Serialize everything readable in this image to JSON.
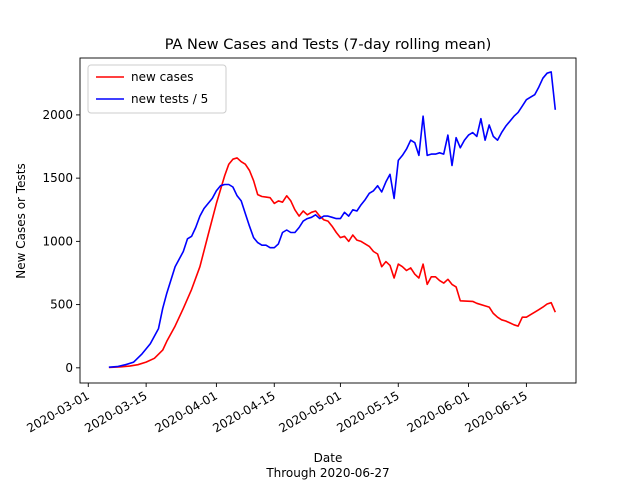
{
  "chart_data": {
    "type": "line",
    "title": "PA New Cases and Tests (7-day rolling mean)",
    "xlabel": "Date",
    "xlabel2": "Through 2020-06-27",
    "ylabel": "New Cases or Tests",
    "x_ticks": [
      "2020-03-01",
      "2020-03-15",
      "2020-04-01",
      "2020-04-15",
      "2020-05-01",
      "2020-05-15",
      "2020-06-01",
      "2020-06-15"
    ],
    "y_ticks": [
      0,
      500,
      1000,
      1500,
      2000
    ],
    "xlim": [
      "2020-02-28",
      "2020-06-27"
    ],
    "ylim": [
      -120,
      2450
    ],
    "legend_position": "top-left",
    "series": [
      {
        "name": "new cases",
        "color": "#ff0000",
        "points": [
          [
            "2020-03-06",
            3
          ],
          [
            "2020-03-09",
            8
          ],
          [
            "2020-03-11",
            14
          ],
          [
            "2020-03-13",
            25
          ],
          [
            "2020-03-15",
            45
          ],
          [
            "2020-03-17",
            75
          ],
          [
            "2020-03-19",
            140
          ],
          [
            "2020-03-20",
            210
          ],
          [
            "2020-03-22",
            330
          ],
          [
            "2020-03-24",
            470
          ],
          [
            "2020-03-26",
            620
          ],
          [
            "2020-03-28",
            800
          ],
          [
            "2020-03-30",
            1050
          ],
          [
            "2020-04-01",
            1300
          ],
          [
            "2020-04-03",
            1520
          ],
          [
            "2020-04-04",
            1610
          ],
          [
            "2020-04-05",
            1650
          ],
          [
            "2020-04-06",
            1660
          ],
          [
            "2020-04-07",
            1630
          ],
          [
            "2020-04-08",
            1610
          ],
          [
            "2020-04-09",
            1560
          ],
          [
            "2020-04-10",
            1480
          ],
          [
            "2020-04-11",
            1370
          ],
          [
            "2020-04-12",
            1355
          ],
          [
            "2020-04-13",
            1350
          ],
          [
            "2020-04-14",
            1345
          ],
          [
            "2020-04-15",
            1300
          ],
          [
            "2020-04-16",
            1320
          ],
          [
            "2020-04-17",
            1310
          ],
          [
            "2020-04-18",
            1360
          ],
          [
            "2020-04-19",
            1320
          ],
          [
            "2020-04-20",
            1250
          ],
          [
            "2020-04-21",
            1200
          ],
          [
            "2020-04-22",
            1240
          ],
          [
            "2020-04-23",
            1210
          ],
          [
            "2020-04-24",
            1230
          ],
          [
            "2020-04-25",
            1240
          ],
          [
            "2020-04-26",
            1200
          ],
          [
            "2020-04-27",
            1170
          ],
          [
            "2020-04-28",
            1160
          ],
          [
            "2020-04-29",
            1120
          ],
          [
            "2020-04-30",
            1070
          ],
          [
            "2020-05-01",
            1030
          ],
          [
            "2020-05-02",
            1040
          ],
          [
            "2020-05-03",
            1000
          ],
          [
            "2020-05-04",
            1050
          ],
          [
            "2020-05-05",
            1010
          ],
          [
            "2020-05-06",
            1000
          ],
          [
            "2020-05-07",
            980
          ],
          [
            "2020-05-08",
            960
          ],
          [
            "2020-05-09",
            920
          ],
          [
            "2020-05-10",
            900
          ],
          [
            "2020-05-11",
            800
          ],
          [
            "2020-05-12",
            840
          ],
          [
            "2020-05-13",
            810
          ],
          [
            "2020-05-14",
            710
          ],
          [
            "2020-05-15",
            820
          ],
          [
            "2020-05-16",
            800
          ],
          [
            "2020-05-17",
            770
          ],
          [
            "2020-05-18",
            790
          ],
          [
            "2020-05-19",
            740
          ],
          [
            "2020-05-20",
            710
          ],
          [
            "2020-05-21",
            820
          ],
          [
            "2020-05-22",
            660
          ],
          [
            "2020-05-23",
            720
          ],
          [
            "2020-05-24",
            720
          ],
          [
            "2020-05-25",
            690
          ],
          [
            "2020-05-26",
            670
          ],
          [
            "2020-05-27",
            700
          ],
          [
            "2020-05-28",
            660
          ],
          [
            "2020-05-29",
            640
          ],
          [
            "2020-05-30",
            530
          ],
          [
            "2020-06-02",
            525
          ],
          [
            "2020-06-03",
            510
          ],
          [
            "2020-06-05",
            490
          ],
          [
            "2020-06-06",
            480
          ],
          [
            "2020-06-07",
            430
          ],
          [
            "2020-06-08",
            400
          ],
          [
            "2020-06-09",
            380
          ],
          [
            "2020-06-10",
            370
          ],
          [
            "2020-06-11",
            355
          ],
          [
            "2020-06-12",
            340
          ],
          [
            "2020-06-13",
            330
          ],
          [
            "2020-06-14",
            400
          ],
          [
            "2020-06-15",
            400
          ],
          [
            "2020-06-16",
            420
          ],
          [
            "2020-06-17",
            440
          ],
          [
            "2020-06-18",
            460
          ],
          [
            "2020-06-19",
            480
          ],
          [
            "2020-06-20",
            505
          ],
          [
            "2020-06-21",
            515
          ],
          [
            "2020-06-22",
            440
          ]
        ]
      },
      {
        "name": "new tests / 5",
        "color": "#0000ff",
        "points": [
          [
            "2020-03-06",
            5
          ],
          [
            "2020-03-08",
            10
          ],
          [
            "2020-03-10",
            25
          ],
          [
            "2020-03-12",
            45
          ],
          [
            "2020-03-14",
            110
          ],
          [
            "2020-03-16",
            190
          ],
          [
            "2020-03-18",
            310
          ],
          [
            "2020-03-19",
            470
          ],
          [
            "2020-03-20",
            590
          ],
          [
            "2020-03-22",
            800
          ],
          [
            "2020-03-24",
            920
          ],
          [
            "2020-03-25",
            1020
          ],
          [
            "2020-03-26",
            1040
          ],
          [
            "2020-03-27",
            1110
          ],
          [
            "2020-03-28",
            1200
          ],
          [
            "2020-03-29",
            1260
          ],
          [
            "2020-03-31",
            1340
          ],
          [
            "2020-04-01",
            1400
          ],
          [
            "2020-04-02",
            1440
          ],
          [
            "2020-04-03",
            1450
          ],
          [
            "2020-04-04",
            1450
          ],
          [
            "2020-04-05",
            1430
          ],
          [
            "2020-04-06",
            1360
          ],
          [
            "2020-04-07",
            1320
          ],
          [
            "2020-04-08",
            1220
          ],
          [
            "2020-04-09",
            1120
          ],
          [
            "2020-04-10",
            1030
          ],
          [
            "2020-04-11",
            990
          ],
          [
            "2020-04-12",
            970
          ],
          [
            "2020-04-13",
            970
          ],
          [
            "2020-04-14",
            950
          ],
          [
            "2020-04-15",
            950
          ],
          [
            "2020-04-16",
            980
          ],
          [
            "2020-04-17",
            1070
          ],
          [
            "2020-04-18",
            1090
          ],
          [
            "2020-04-19",
            1070
          ],
          [
            "2020-04-20",
            1070
          ],
          [
            "2020-04-21",
            1110
          ],
          [
            "2020-04-22",
            1160
          ],
          [
            "2020-04-23",
            1180
          ],
          [
            "2020-04-24",
            1190
          ],
          [
            "2020-04-25",
            1210
          ],
          [
            "2020-04-26",
            1180
          ],
          [
            "2020-04-27",
            1200
          ],
          [
            "2020-04-28",
            1200
          ],
          [
            "2020-04-29",
            1190
          ],
          [
            "2020-04-30",
            1180
          ],
          [
            "2020-05-01",
            1180
          ],
          [
            "2020-05-02",
            1230
          ],
          [
            "2020-05-03",
            1200
          ],
          [
            "2020-05-04",
            1250
          ],
          [
            "2020-05-05",
            1240
          ],
          [
            "2020-05-06",
            1290
          ],
          [
            "2020-05-07",
            1330
          ],
          [
            "2020-05-08",
            1380
          ],
          [
            "2020-05-09",
            1400
          ],
          [
            "2020-05-10",
            1440
          ],
          [
            "2020-05-11",
            1390
          ],
          [
            "2020-05-12",
            1470
          ],
          [
            "2020-05-13",
            1530
          ],
          [
            "2020-05-14",
            1340
          ],
          [
            "2020-05-15",
            1640
          ],
          [
            "2020-05-16",
            1680
          ],
          [
            "2020-05-17",
            1730
          ],
          [
            "2020-05-18",
            1800
          ],
          [
            "2020-05-19",
            1780
          ],
          [
            "2020-05-20",
            1680
          ],
          [
            "2020-05-21",
            1990
          ],
          [
            "2020-05-22",
            1680
          ],
          [
            "2020-05-23",
            1690
          ],
          [
            "2020-05-24",
            1690
          ],
          [
            "2020-05-25",
            1700
          ],
          [
            "2020-05-26",
            1690
          ],
          [
            "2020-05-27",
            1840
          ],
          [
            "2020-05-28",
            1600
          ],
          [
            "2020-05-29",
            1820
          ],
          [
            "2020-05-30",
            1740
          ],
          [
            "2020-05-31",
            1800
          ],
          [
            "2020-06-01",
            1840
          ],
          [
            "2020-06-02",
            1860
          ],
          [
            "2020-06-03",
            1830
          ],
          [
            "2020-06-04",
            1970
          ],
          [
            "2020-06-05",
            1800
          ],
          [
            "2020-06-06",
            1920
          ],
          [
            "2020-06-07",
            1830
          ],
          [
            "2020-06-08",
            1800
          ],
          [
            "2020-06-09",
            1860
          ],
          [
            "2020-06-10",
            1910
          ],
          [
            "2020-06-11",
            1950
          ],
          [
            "2020-06-12",
            1990
          ],
          [
            "2020-06-13",
            2020
          ],
          [
            "2020-06-14",
            2070
          ],
          [
            "2020-06-15",
            2120
          ],
          [
            "2020-06-16",
            2140
          ],
          [
            "2020-06-17",
            2160
          ],
          [
            "2020-06-18",
            2220
          ],
          [
            "2020-06-19",
            2290
          ],
          [
            "2020-06-20",
            2330
          ],
          [
            "2020-06-21",
            2340
          ],
          [
            "2020-06-22",
            2040
          ]
        ]
      }
    ]
  }
}
